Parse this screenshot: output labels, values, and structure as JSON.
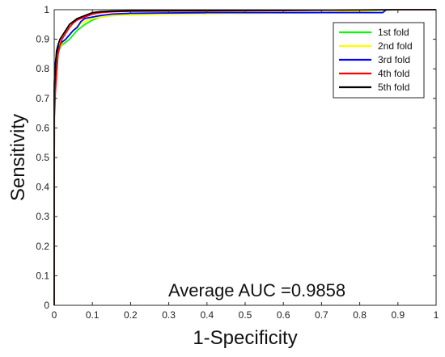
{
  "chart_data": {
    "type": "line",
    "title": "",
    "xlabel": "1-Specificity",
    "ylabel": "Sensitivity",
    "xlim": [
      0,
      1
    ],
    "ylim": [
      0,
      1
    ],
    "xticks": [
      "0",
      "0.1",
      "0.2",
      "0.3",
      "0.4",
      "0.5",
      "0.6",
      "0.7",
      "0.8",
      "0.9",
      "1"
    ],
    "yticks": [
      "0",
      "0.1",
      "0.2",
      "0.3",
      "0.4",
      "0.5",
      "0.6",
      "0.7",
      "0.8",
      "0.9",
      "1"
    ],
    "grid": false,
    "legend_position": "top-right",
    "annotation": "Average AUC =0.9858",
    "series": [
      {
        "name": "1st fold",
        "color": "#00ff00",
        "x": [
          0,
          0,
          0.003,
          0.006,
          0.01,
          0.015,
          0.02,
          0.03,
          0.04,
          0.05,
          0.06,
          0.08,
          0.1,
          0.12,
          0.15,
          0.2,
          0.3,
          0.5,
          0.7,
          0.9,
          1
        ],
        "y": [
          0,
          0.5,
          0.78,
          0.83,
          0.855,
          0.87,
          0.88,
          0.89,
          0.9,
          0.915,
          0.93,
          0.95,
          0.965,
          0.975,
          0.98,
          0.983,
          0.986,
          0.988,
          0.99,
          1,
          1
        ]
      },
      {
        "name": "2nd fold",
        "color": "#ffff00",
        "x": [
          0,
          0,
          0.003,
          0.006,
          0.01,
          0.015,
          0.02,
          0.03,
          0.04,
          0.05,
          0.06,
          0.08,
          0.1,
          0.12,
          0.15,
          0.2,
          0.3,
          0.5,
          0.7,
          0.88,
          1
        ],
        "y": [
          0,
          0.5,
          0.8,
          0.84,
          0.86,
          0.875,
          0.885,
          0.9,
          0.915,
          0.93,
          0.945,
          0.96,
          0.97,
          0.975,
          0.98,
          0.982,
          0.985,
          0.988,
          0.99,
          1,
          1
        ]
      },
      {
        "name": "3rd fold",
        "color": "#0000ff",
        "x": [
          0,
          0,
          0.003,
          0.006,
          0.01,
          0.015,
          0.02,
          0.03,
          0.04,
          0.05,
          0.06,
          0.07,
          0.08,
          0.1,
          0.12,
          0.15,
          0.2,
          0.4,
          0.6,
          0.86,
          0.87,
          1
        ],
        "y": [
          0,
          0.75,
          0.82,
          0.85,
          0.87,
          0.88,
          0.89,
          0.9,
          0.915,
          0.93,
          0.94,
          0.96,
          0.97,
          0.975,
          0.98,
          0.985,
          0.988,
          0.99,
          0.99,
          0.99,
          1,
          1
        ]
      },
      {
        "name": "4th fold",
        "color": "#ff0000",
        "x": [
          0,
          0,
          0.003,
          0.006,
          0.01,
          0.015,
          0.02,
          0.03,
          0.04,
          0.05,
          0.06,
          0.08,
          0.1,
          0.12,
          0.15,
          0.2,
          0.4,
          0.6,
          0.9,
          1
        ],
        "y": [
          0,
          0.63,
          0.72,
          0.78,
          0.85,
          0.88,
          0.9,
          0.92,
          0.94,
          0.955,
          0.965,
          0.975,
          0.985,
          0.99,
          0.993,
          0.995,
          0.996,
          0.997,
          1,
          1
        ]
      },
      {
        "name": "5th fold",
        "color": "#000000",
        "x": [
          0,
          0,
          0.003,
          0.006,
          0.01,
          0.015,
          0.02,
          0.03,
          0.04,
          0.05,
          0.06,
          0.08,
          0.1,
          0.12,
          0.15,
          0.2,
          0.4,
          0.6,
          0.9,
          1
        ],
        "y": [
          0,
          0.72,
          0.8,
          0.86,
          0.88,
          0.9,
          0.91,
          0.93,
          0.95,
          0.96,
          0.97,
          0.98,
          0.99,
          0.993,
          0.995,
          0.996,
          0.997,
          0.998,
          1,
          1
        ]
      }
    ]
  }
}
